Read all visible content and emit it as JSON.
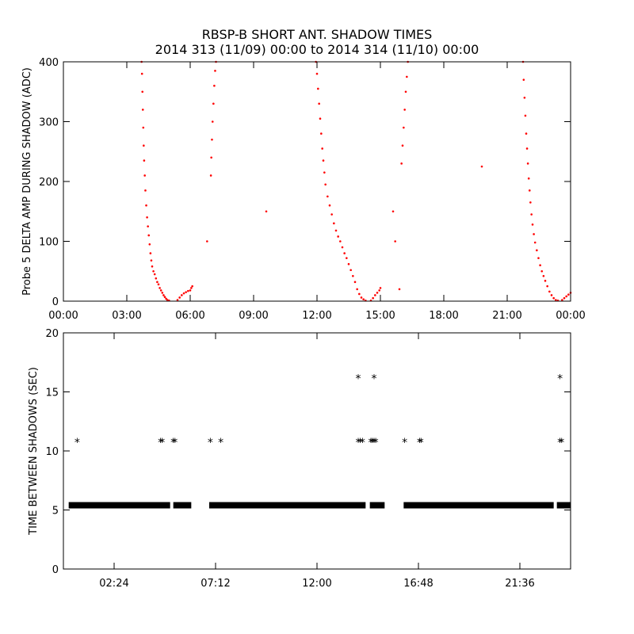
{
  "titles": {
    "line1": "RBSP-B SHORT ANT. SHADOW TIMES",
    "line2": "2014 313 (11/09) 00:00 to 2014 314 (11/10) 00:00"
  },
  "colors": {
    "top_points": "#ff0000",
    "bottom_points": "#000000",
    "axes": "#000000"
  },
  "chart_data": [
    {
      "type": "scatter",
      "ylabel": "Probe 5 DELTA AMP DURING SHADOW (ADC)",
      "xlabel": "",
      "x_unit": "hours",
      "xlim": [
        0,
        24
      ],
      "ylim": [
        0,
        400
      ],
      "grid": false,
      "marker": "dot",
      "x_ticks": [
        0,
        3,
        6,
        9,
        12,
        15,
        18,
        21,
        24
      ],
      "x_tick_labels": [
        "00:00",
        "03:00",
        "06:00",
        "09:00",
        "12:00",
        "15:00",
        "18:00",
        "21:00",
        "00:00"
      ],
      "y_ticks": [
        0,
        100,
        200,
        300,
        400
      ],
      "y_tick_labels": [
        "0",
        "100",
        "200",
        "300",
        "400"
      ],
      "series": [
        {
          "points": [
            [
              3.7,
              400
            ],
            [
              3.72,
              380
            ],
            [
              3.74,
              350
            ],
            [
              3.76,
              320
            ],
            [
              3.78,
              290
            ],
            [
              3.8,
              260
            ],
            [
              3.82,
              235
            ],
            [
              3.85,
              210
            ],
            [
              3.88,
              185
            ],
            [
              3.92,
              160
            ],
            [
              3.96,
              140
            ],
            [
              4.0,
              125
            ],
            [
              4.04,
              110
            ],
            [
              4.08,
              95
            ],
            [
              4.12,
              80
            ],
            [
              4.16,
              68
            ],
            [
              4.2,
              58
            ],
            [
              4.26,
              50
            ],
            [
              4.32,
              45
            ],
            [
              4.38,
              38
            ],
            [
              4.44,
              32
            ],
            [
              4.5,
              28
            ],
            [
              4.56,
              22
            ],
            [
              4.62,
              18
            ],
            [
              4.68,
              14
            ],
            [
              4.74,
              10
            ],
            [
              4.8,
              7
            ],
            [
              4.86,
              4
            ],
            [
              4.92,
              2
            ],
            [
              5.0,
              1
            ],
            [
              5.4,
              2
            ],
            [
              5.5,
              6
            ],
            [
              5.6,
              10
            ],
            [
              5.7,
              13
            ],
            [
              5.8,
              15
            ],
            [
              5.9,
              17
            ],
            [
              6.0,
              18
            ],
            [
              6.05,
              22
            ],
            [
              6.1,
              25
            ],
            [
              6.98,
              210
            ],
            [
              7.0,
              240
            ],
            [
              7.03,
              270
            ],
            [
              7.06,
              300
            ],
            [
              7.1,
              330
            ],
            [
              7.14,
              360
            ],
            [
              7.18,
              385
            ],
            [
              7.22,
              400
            ],
            [
              6.8,
              100
            ],
            [
              9.6,
              150
            ],
            [
              11.95,
              400
            ],
            [
              12.0,
              380
            ],
            [
              12.05,
              355
            ],
            [
              12.1,
              330
            ],
            [
              12.15,
              305
            ],
            [
              12.2,
              280
            ],
            [
              12.25,
              255
            ],
            [
              12.3,
              235
            ],
            [
              12.35,
              215
            ],
            [
              12.4,
              195
            ],
            [
              12.5,
              175
            ],
            [
              12.6,
              160
            ],
            [
              12.7,
              145
            ],
            [
              12.8,
              130
            ],
            [
              12.9,
              118
            ],
            [
              13.0,
              108
            ],
            [
              13.1,
              100
            ],
            [
              13.2,
              90
            ],
            [
              13.3,
              80
            ],
            [
              13.4,
              72
            ],
            [
              13.5,
              62
            ],
            [
              13.6,
              52
            ],
            [
              13.7,
              42
            ],
            [
              13.8,
              32
            ],
            [
              13.9,
              20
            ],
            [
              14.0,
              12
            ],
            [
              14.1,
              6
            ],
            [
              14.2,
              3
            ],
            [
              14.3,
              1
            ],
            [
              14.55,
              1
            ],
            [
              14.65,
              5
            ],
            [
              14.75,
              10
            ],
            [
              14.85,
              14
            ],
            [
              14.95,
              18
            ],
            [
              15.0,
              22
            ],
            [
              15.9,
              20
            ],
            [
              15.7,
              100
            ],
            [
              15.6,
              150
            ],
            [
              16.0,
              230
            ],
            [
              16.05,
              260
            ],
            [
              16.1,
              290
            ],
            [
              16.15,
              320
            ],
            [
              16.2,
              350
            ],
            [
              16.25,
              375
            ],
            [
              16.3,
              400
            ],
            [
              19.8,
              225
            ],
            [
              21.75,
              400
            ],
            [
              21.78,
              370
            ],
            [
              21.82,
              340
            ],
            [
              21.86,
              310
            ],
            [
              21.9,
              280
            ],
            [
              21.94,
              255
            ],
            [
              21.98,
              230
            ],
            [
              22.02,
              205
            ],
            [
              22.06,
              185
            ],
            [
              22.1,
              165
            ],
            [
              22.15,
              145
            ],
            [
              22.2,
              128
            ],
            [
              22.26,
              112
            ],
            [
              22.32,
              98
            ],
            [
              22.4,
              85
            ],
            [
              22.48,
              72
            ],
            [
              22.56,
              60
            ],
            [
              22.64,
              50
            ],
            [
              22.72,
              42
            ],
            [
              22.8,
              34
            ],
            [
              22.9,
              25
            ],
            [
              23.0,
              16
            ],
            [
              23.1,
              10
            ],
            [
              23.2,
              5
            ],
            [
              23.3,
              2
            ],
            [
              23.4,
              1
            ],
            [
              23.6,
              2
            ],
            [
              23.7,
              5
            ],
            [
              23.8,
              8
            ],
            [
              23.9,
              11
            ],
            [
              24.0,
              14
            ]
          ]
        }
      ]
    },
    {
      "type": "scatter",
      "ylabel": "TIME BETWEEN SHADOWS (SEC)",
      "xlabel": "",
      "x_unit": "hours",
      "xlim": [
        0,
        24
      ],
      "ylim": [
        0,
        20
      ],
      "grid": false,
      "marker": "asterisk",
      "x_ticks": [
        2.4,
        7.2,
        12,
        16.8,
        21.6
      ],
      "x_tick_labels": [
        "02:24",
        "07:12",
        "12:00",
        "16:48",
        "21:36"
      ],
      "y_ticks": [
        0,
        5,
        10,
        15,
        20
      ],
      "y_tick_labels": [
        "0",
        "5",
        "10",
        "15",
        "20"
      ],
      "baseline_runs": [
        {
          "y": 5.4,
          "x": [
            0.25,
            5.05
          ]
        },
        {
          "y": 5.4,
          "x": [
            5.2,
            6.05
          ]
        },
        {
          "y": 5.4,
          "x": [
            6.9,
            14.3
          ]
        },
        {
          "y": 5.4,
          "x": [
            14.5,
            15.2
          ]
        },
        {
          "y": 5.4,
          "x": [
            16.1,
            23.2
          ]
        },
        {
          "y": 5.4,
          "x": [
            23.35,
            24
          ]
        }
      ],
      "series": [
        {
          "points": [
            [
              0.65,
              10.8
            ],
            [
              4.6,
              10.8
            ],
            [
              4.68,
              10.8
            ],
            [
              5.2,
              10.8
            ],
            [
              5.28,
              10.8
            ],
            [
              6.95,
              10.8
            ],
            [
              7.45,
              10.8
            ],
            [
              13.95,
              16.2
            ],
            [
              14.7,
              16.2
            ],
            [
              13.95,
              10.8
            ],
            [
              14.05,
              10.8
            ],
            [
              14.15,
              10.8
            ],
            [
              14.55,
              10.8
            ],
            [
              14.62,
              10.8
            ],
            [
              14.7,
              10.8
            ],
            [
              14.78,
              10.8
            ],
            [
              16.15,
              10.8
            ],
            [
              16.85,
              10.8
            ],
            [
              16.92,
              10.8
            ],
            [
              23.5,
              16.2
            ],
            [
              23.5,
              10.8
            ],
            [
              23.58,
              10.8
            ]
          ]
        }
      ]
    }
  ]
}
